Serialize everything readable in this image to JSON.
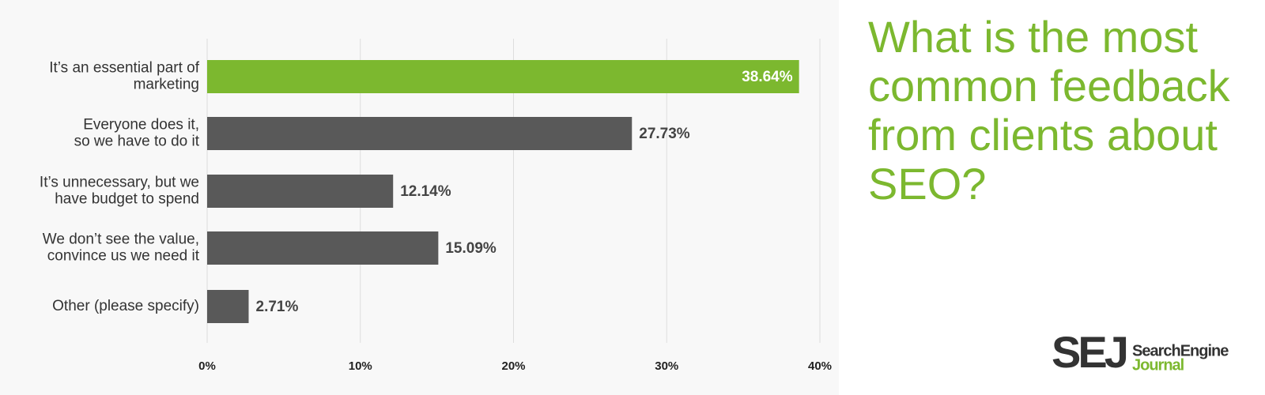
{
  "chart_data": {
    "type": "bar",
    "orientation": "horizontal",
    "title": [
      "What is the most",
      "common feedback",
      "from clients about",
      "SEO?"
    ],
    "categories": [
      [
        "It’s an essential part of",
        "marketing"
      ],
      [
        "Everyone does it,",
        "so we have to do it"
      ],
      [
        "It’s unnecessary, but we",
        "have budget to spend"
      ],
      [
        "We don’t see the value,",
        "convince us we need it"
      ],
      [
        "Other (please specify)"
      ]
    ],
    "values": [
      38.64,
      27.73,
      12.14,
      15.09,
      2.71
    ],
    "value_labels": [
      "38.64%",
      "27.73%",
      "12.14%",
      "15.09%",
      "2.71%"
    ],
    "colors": [
      "#7cb82f",
      "#595959",
      "#595959",
      "#595959",
      "#595959"
    ],
    "xlim": [
      0,
      40
    ],
    "xticks": [
      {
        "value": 0,
        "label": "0%"
      },
      {
        "value": 10,
        "label": "10%"
      },
      {
        "value": 20,
        "label": "20%"
      },
      {
        "value": 30,
        "label": "30%"
      },
      {
        "value": 40,
        "label": "40%"
      }
    ],
    "grid": true
  },
  "logo": {
    "mark": "SEJ",
    "name": "SearchEngine",
    "sub": "Journal"
  }
}
